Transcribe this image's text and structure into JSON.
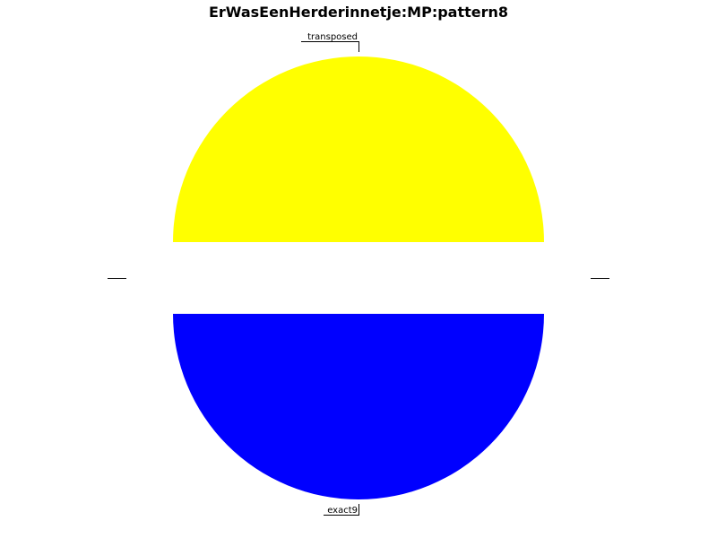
{
  "chart_data": {
    "type": "pie",
    "title": "ErWasEenHerderinnetje:MP:pattern8",
    "slices": [
      {
        "label": "transposed",
        "value": 50,
        "color": "#ffff00"
      },
      {
        "label": "",
        "value": 0,
        "color": "#ffffff"
      },
      {
        "label": "exact9",
        "value": 50,
        "color": "#0000ff"
      },
      {
        "label": "",
        "value": 0,
        "color": "#ffffff"
      }
    ],
    "legend": "none"
  }
}
